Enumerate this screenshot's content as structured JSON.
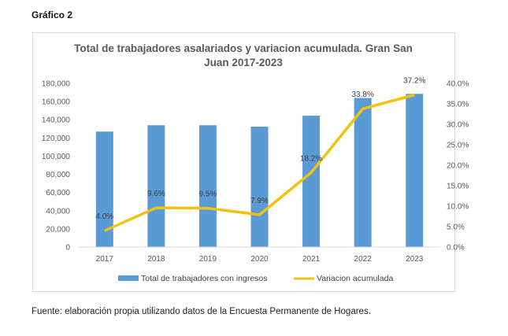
{
  "heading": "Gráfico 2",
  "source": "Fuente: elaboración propia utilizando datos de la Encuesta Permanente de Hogares.",
  "colors": {
    "bar": "#5b9bd5",
    "line": "#f2c20e"
  },
  "chart_data": {
    "type": "bar",
    "title_line1": "Total de trabajadores asalariados y variacion acumulada. Gran San",
    "title_line2": "Juan 2017-2023",
    "categories": [
      "2017",
      "2018",
      "2019",
      "2020",
      "2021",
      "2022",
      "2023"
    ],
    "y_ticks": [
      "0",
      "20,000",
      "40,000",
      "60,000",
      "80,000",
      "100,000",
      "120,000",
      "140,000",
      "160,000",
      "180,000"
    ],
    "y2_ticks": [
      "0.0%",
      "5.0%",
      "10.0%",
      "15.0%",
      "20.0%",
      "25.0%",
      "30.0%",
      "35.0%",
      "40.0%"
    ],
    "ylim": [
      0,
      180000
    ],
    "y2lim": [
      0,
      40
    ],
    "grid": false,
    "legend_position": "bottom",
    "series": [
      {
        "name": "Total de trabajadores con ingresos",
        "type": "bar",
        "axis": "left",
        "values": [
          127000,
          134000,
          134000,
          132500,
          144500,
          164000,
          168500
        ]
      },
      {
        "name": "Variacion acumulada",
        "type": "line",
        "axis": "right",
        "values": [
          4.0,
          9.6,
          9.5,
          7.9,
          18.2,
          33.8,
          37.2
        ],
        "labels": [
          "4.0%",
          "9.6%",
          "9.5%",
          "7.9%",
          "18.2%",
          "33.8%",
          "37.2%"
        ]
      }
    ]
  }
}
